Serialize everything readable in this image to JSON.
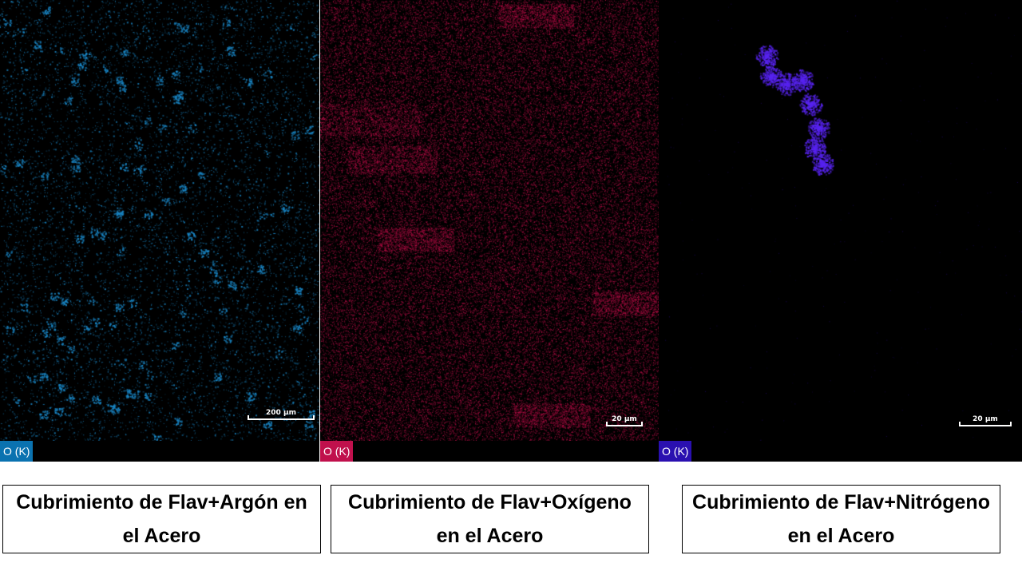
{
  "colors": {
    "argon": "#1a88c8",
    "oxygen": "#c8104e",
    "nitrogen": "#3a10c8",
    "argon_tag": "#0a72b0",
    "oxygen_tag": "#c0104c",
    "nitrogen_tag": "#2a10b0"
  },
  "panels": [
    {
      "id": "argon",
      "element_label": "O (K)",
      "scale_label": "200 µm",
      "caption": "Cubrimiento de Flav+Argón en el Acero"
    },
    {
      "id": "oxygen",
      "element_label": "O (K)",
      "scale_label": "20 µm",
      "caption": "Cubrimiento de Flav+Oxígeno en el Acero"
    },
    {
      "id": "nitrogen",
      "element_label": "O (K)",
      "scale_label": "20 µm",
      "caption": "Cubrimiento de Flav+Nitrógeno en el Acero"
    }
  ]
}
